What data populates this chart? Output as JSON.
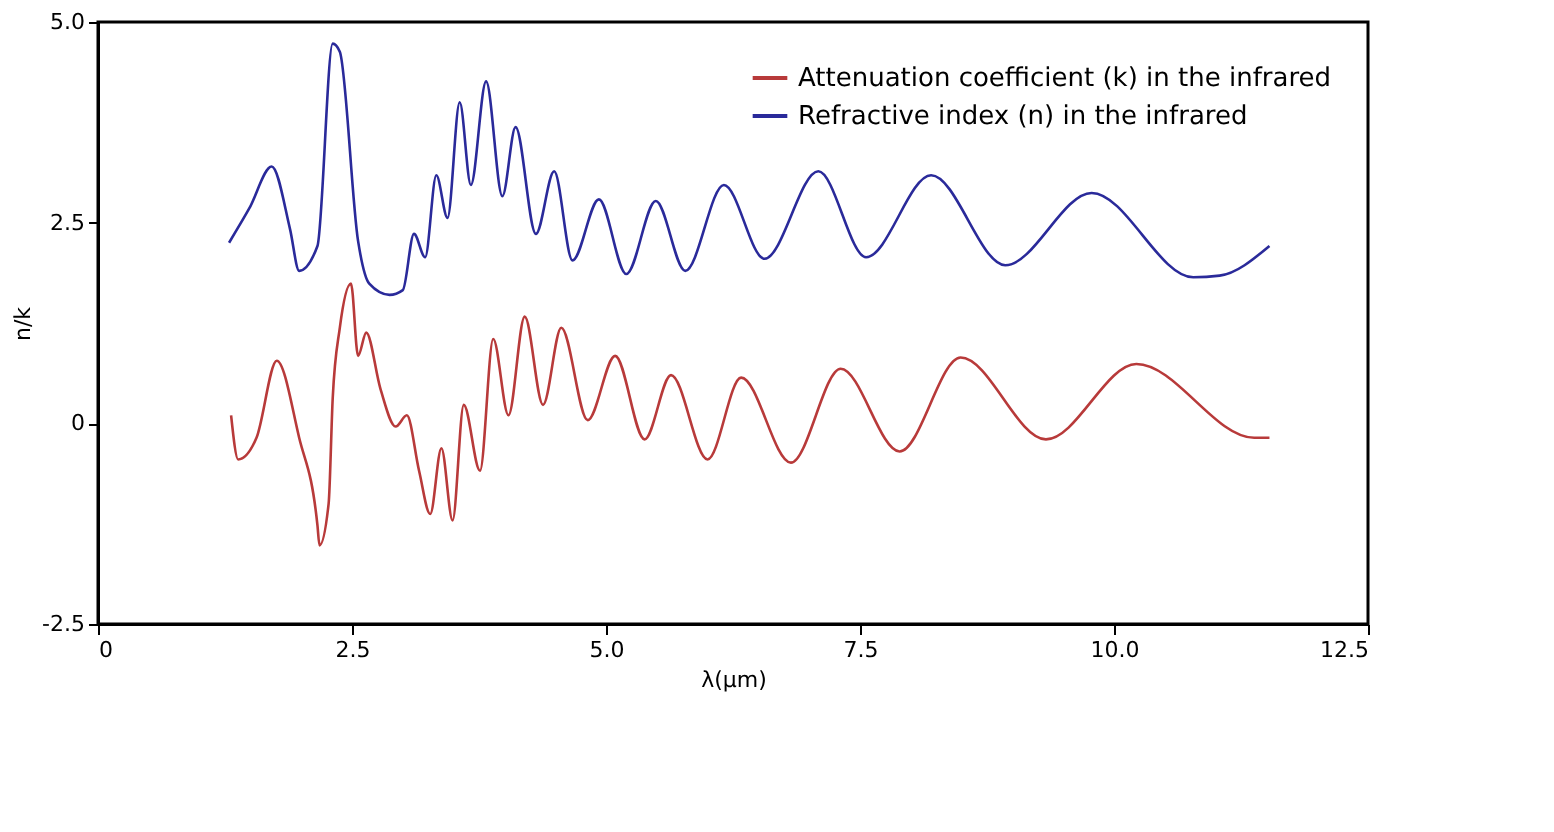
{
  "chart_data": {
    "type": "line",
    "xlabel": "λ(μm)",
    "ylabel": "n/k",
    "xlim": [
      0,
      12.5
    ],
    "ylim": [
      -2.5,
      5.0
    ],
    "xticks": [
      0,
      2.5,
      {
        "value": 5,
        "label": "5.0"
      },
      7.5,
      {
        "value": 10,
        "label": "10.0"
      },
      12.5
    ],
    "yticks": [
      -2.5,
      0,
      2.5,
      {
        "value": 5,
        "label": "5.0"
      }
    ],
    "grid": false,
    "legend": "top right",
    "line_style": "solid",
    "marker": "none",
    "series": [
      {
        "name": "Attenuation coefficient (k) in the infrared",
        "color": "#b83a3a",
        "x": [
          1.31,
          1.38,
          1.56,
          1.76,
          1.98,
          2.16,
          2.18,
          2.27,
          2.31,
          2.38,
          2.49,
          2.56,
          2.64,
          2.78,
          2.93,
          3.04,
          3.16,
          3.27,
          3.38,
          3.49,
          3.6,
          3.76,
          3.89,
          4.04,
          4.2,
          4.38,
          4.56,
          4.82,
          5.09,
          5.38,
          5.64,
          6.0,
          6.33,
          6.82,
          7.31,
          7.89,
          8.49,
          9.33,
          10.22,
          11.38,
          11.53
        ],
        "values": [
          0.1,
          -0.45,
          -0.18,
          0.78,
          -0.18,
          -1.27,
          -1.52,
          -1.0,
          0.31,
          1.19,
          1.74,
          0.84,
          1.13,
          0.43,
          -0.04,
          0.1,
          -0.59,
          -1.13,
          -0.31,
          -1.21,
          0.23,
          -0.59,
          1.05,
          0.1,
          1.33,
          0.23,
          1.19,
          0.04,
          0.84,
          -0.2,
          0.6,
          -0.45,
          0.57,
          -0.49,
          0.68,
          -0.35,
          0.82,
          -0.2,
          0.74,
          -0.18,
          -0.18
        ]
      },
      {
        "name": "Refractive index (n) in the infrared",
        "color": "#2a2a9a",
        "x": [
          1.29,
          1.49,
          1.71,
          1.89,
          1.98,
          2.16,
          2.31,
          2.38,
          2.56,
          2.67,
          2.87,
          3.0,
          3.11,
          3.22,
          3.33,
          3.44,
          3.56,
          3.67,
          3.82,
          3.98,
          4.11,
          4.31,
          4.49,
          4.67,
          4.93,
          5.2,
          5.49,
          5.78,
          6.16,
          6.56,
          7.09,
          7.56,
          8.2,
          8.93,
          9.78,
          10.78,
          11.04,
          11.53
        ],
        "values": [
          2.25,
          2.68,
          3.2,
          2.42,
          1.9,
          2.21,
          4.73,
          4.63,
          2.27,
          1.74,
          1.6,
          1.66,
          2.36,
          2.07,
          3.09,
          2.56,
          4.0,
          2.97,
          4.26,
          2.83,
          3.69,
          2.36,
          3.14,
          2.03,
          2.79,
          1.86,
          2.77,
          1.9,
          2.97,
          2.05,
          3.14,
          2.07,
          3.09,
          1.97,
          2.87,
          1.82,
          1.84,
          2.21
        ]
      }
    ]
  }
}
